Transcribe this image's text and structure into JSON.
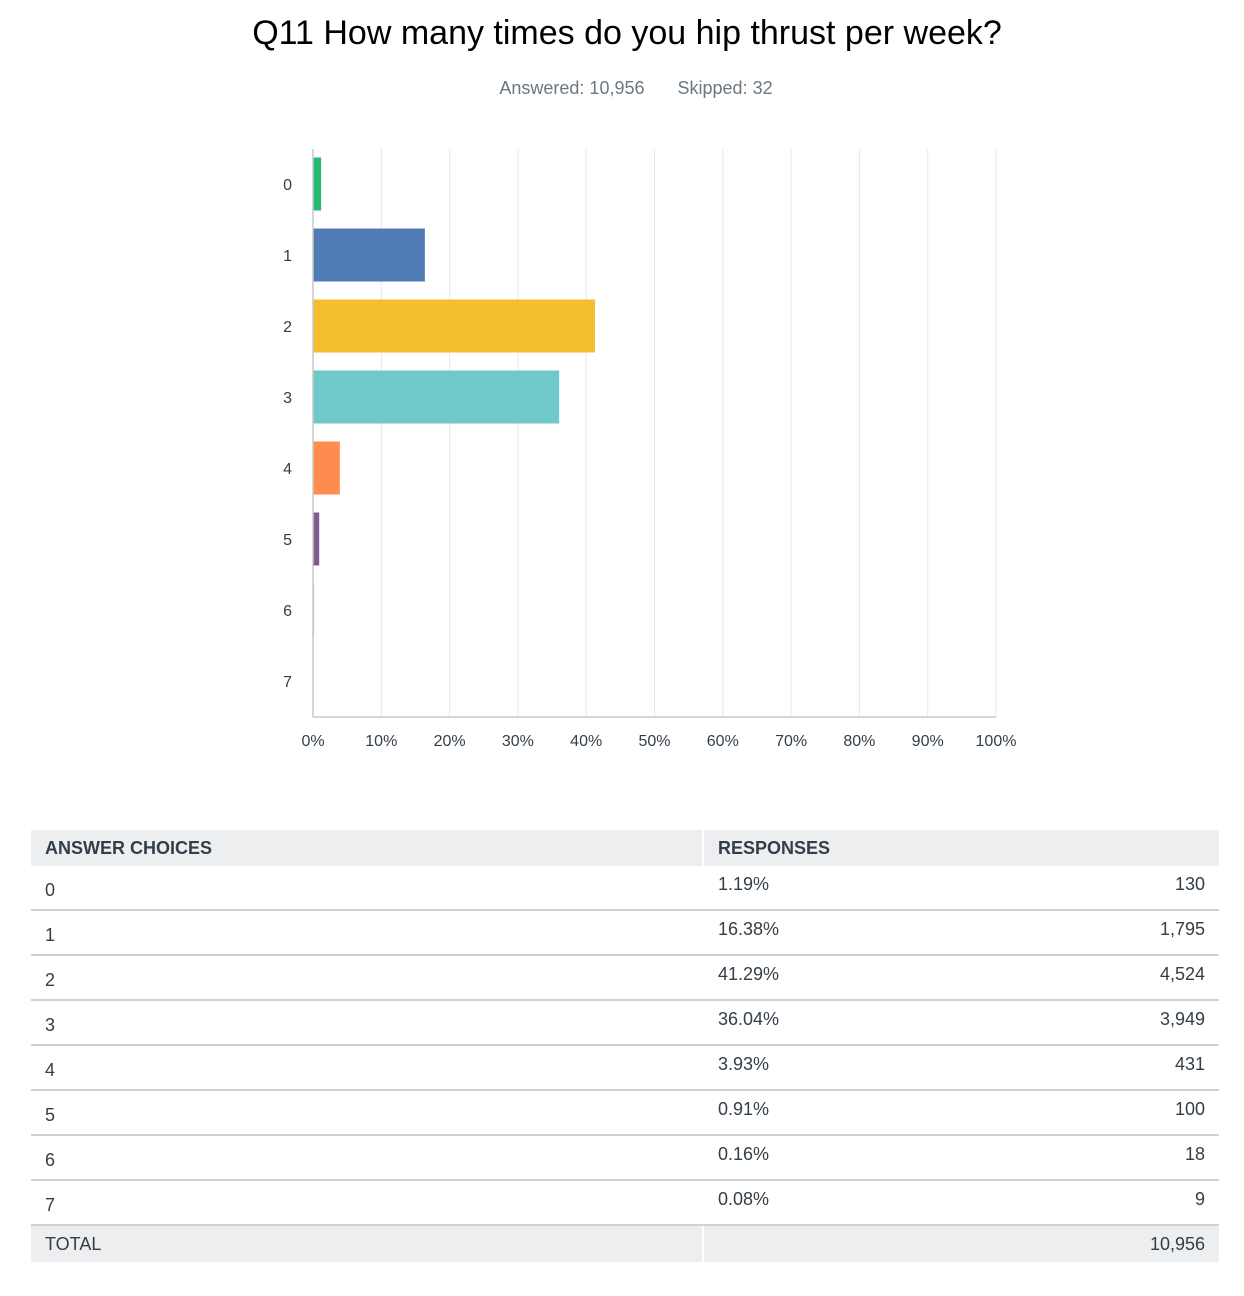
{
  "question": {
    "title": "Q11 How many times do you hip thrust per week?",
    "answered": "Answered: 10,956",
    "skipped": "Skipped: 32"
  },
  "chart_data": {
    "type": "bar",
    "orientation": "horizontal",
    "categories": [
      "0",
      "1",
      "2",
      "3",
      "4",
      "5",
      "6",
      "7"
    ],
    "values": [
      1.19,
      16.38,
      41.29,
      36.04,
      3.93,
      0.91,
      0.16,
      0.08
    ],
    "colors": [
      "#25bc72",
      "#507bb5",
      "#f5be2e",
      "#6fc8ca",
      "#ff8b4f",
      "#7d5c90",
      "#c0c0c0",
      "#d26e7d"
    ],
    "xlim": [
      0,
      100
    ],
    "xticks": [
      "0%",
      "10%",
      "20%",
      "30%",
      "40%",
      "50%",
      "60%",
      "70%",
      "80%",
      "90%",
      "100%"
    ],
    "grid": true,
    "title": "",
    "xlabel": "",
    "ylabel": ""
  },
  "table": {
    "headers": [
      "ANSWER CHOICES",
      "RESPONSES"
    ],
    "rows": [
      {
        "choice": "0",
        "percent": "1.19%",
        "count": "130"
      },
      {
        "choice": "1",
        "percent": "16.38%",
        "count": "1,795"
      },
      {
        "choice": "2",
        "percent": "41.29%",
        "count": "4,524"
      },
      {
        "choice": "3",
        "percent": "36.04%",
        "count": "3,949"
      },
      {
        "choice": "4",
        "percent": "3.93%",
        "count": "431"
      },
      {
        "choice": "5",
        "percent": "0.91%",
        "count": "100"
      },
      {
        "choice": "6",
        "percent": "0.16%",
        "count": "18"
      },
      {
        "choice": "7",
        "percent": "0.08%",
        "count": "9"
      }
    ],
    "total_label": "TOTAL",
    "total_count": "10,956"
  }
}
